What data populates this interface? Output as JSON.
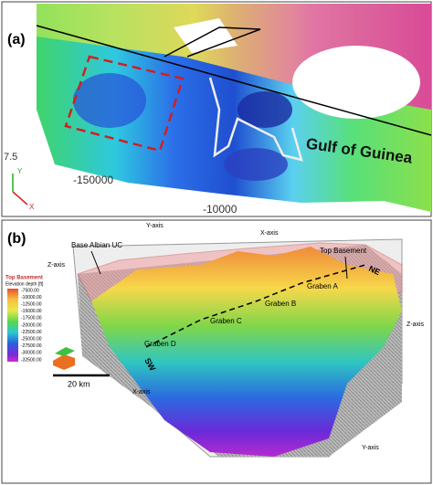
{
  "panel_a": {
    "label": "(a)",
    "annotation": "Gulf of Guinea",
    "axis_labels": [
      "7.5",
      "-150000",
      "-10000"
    ],
    "triad": [
      "Y",
      "X"
    ]
  },
  "panel_b": {
    "label": "(b)",
    "top_axis_labels": [
      "Y-axis",
      "X-axis"
    ],
    "base_albian": "Base Albian UC",
    "top_basement": "Top Basement",
    "z_axis_left": "Z-axis",
    "z_axis_right": "Z-axis",
    "grabens": [
      "Graben A",
      "Graben B",
      "Graben C",
      "Graben D"
    ],
    "profile_ends": [
      "NE",
      "SW"
    ],
    "bottom_axis_labels": [
      "X-axis",
      "Y-axis"
    ],
    "scale": "20 km",
    "legend": {
      "title": "Top Basement",
      "subtitle": "Elevation depth [ft]",
      "values": [
        "-7500.00",
        "-10000.00",
        "-12500.00",
        "-15000.00",
        "-17500.00",
        "-20000.00",
        "-22500.00",
        "-25000.00",
        "-27500.00",
        "-30000.00",
        "-32500.00"
      ]
    }
  }
}
